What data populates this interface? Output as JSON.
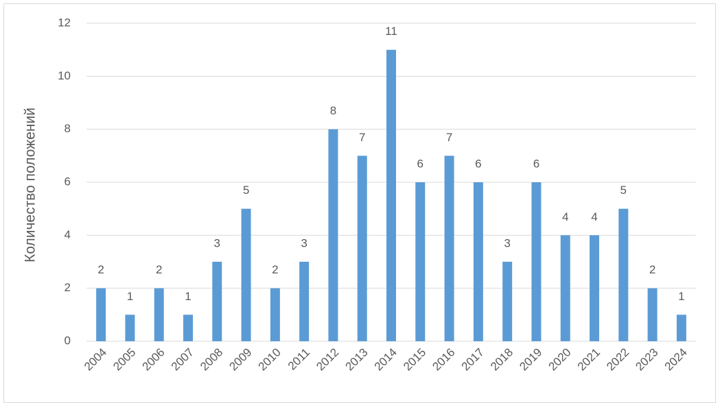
{
  "chart_data": {
    "type": "bar",
    "y_label": "Количество положений",
    "categories": [
      "2004",
      "2005",
      "2006",
      "2007",
      "2008",
      "2009",
      "2010",
      "2011",
      "2012",
      "2013",
      "2014",
      "2015",
      "2016",
      "2017",
      "2018",
      "2019",
      "2020",
      "2021",
      "2022",
      "2023",
      "2024"
    ],
    "values": [
      2,
      1,
      2,
      1,
      3,
      5,
      2,
      3,
      8,
      7,
      11,
      6,
      7,
      6,
      3,
      6,
      4,
      4,
      5,
      2,
      1
    ],
    "color": "#5b9bd5",
    "ylim": [
      0,
      12
    ],
    "yticks": [
      0,
      2,
      4,
      6,
      8,
      10,
      12
    ],
    "grid": true,
    "data_labels": true
  }
}
